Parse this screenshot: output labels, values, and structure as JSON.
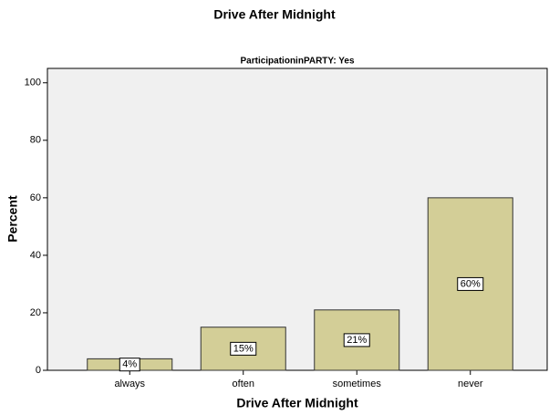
{
  "chart_data": {
    "type": "bar",
    "title": "Drive After Midnight",
    "subtitle": "ParticipationinPARTY: Yes",
    "xlabel": "Drive After Midnight",
    "ylabel": "Percent",
    "categories": [
      "always",
      "often",
      "sometimes",
      "never"
    ],
    "values": [
      4,
      15,
      21,
      60
    ],
    "value_labels": [
      "4%",
      "15%",
      "21%",
      "60%"
    ],
    "color": "#d3ce97",
    "ylim": [
      0,
      105
    ],
    "yticks": [
      0,
      20,
      40,
      60,
      80,
      100
    ]
  }
}
